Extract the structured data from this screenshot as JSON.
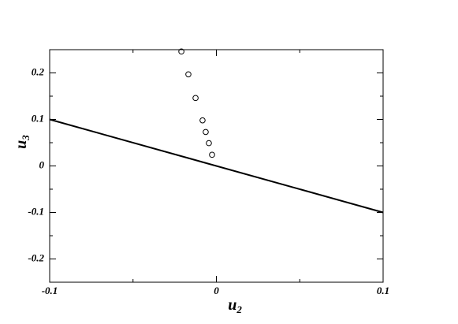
{
  "chart_data": {
    "type": "scatter",
    "xlabel": {
      "base": "u",
      "sub": "2"
    },
    "ylabel": {
      "base": "u",
      "sub": "3"
    },
    "xlim": [
      -0.1,
      0.1
    ],
    "xticks": [
      -0.1,
      0,
      0.1
    ],
    "xminor": [
      -0.05,
      0.05
    ],
    "ylim": [
      -0.25,
      0.25
    ],
    "yticks": [
      -0.2,
      -0.1,
      0,
      0.1,
      0.2
    ],
    "yminor": [
      -0.15,
      -0.05,
      0.05,
      0.15
    ],
    "line": {
      "x": [
        -0.1,
        0.1
      ],
      "y": [
        0.1,
        -0.1
      ],
      "color": "#000000"
    },
    "points": {
      "x": [
        -0.021,
        -0.0168,
        -0.0125,
        -0.0083,
        -0.0064,
        -0.0045,
        -0.0026
      ],
      "y": [
        0.246,
        0.197,
        0.146,
        0.098,
        0.073,
        0.049,
        0.024
      ],
      "color": "#000000"
    }
  }
}
